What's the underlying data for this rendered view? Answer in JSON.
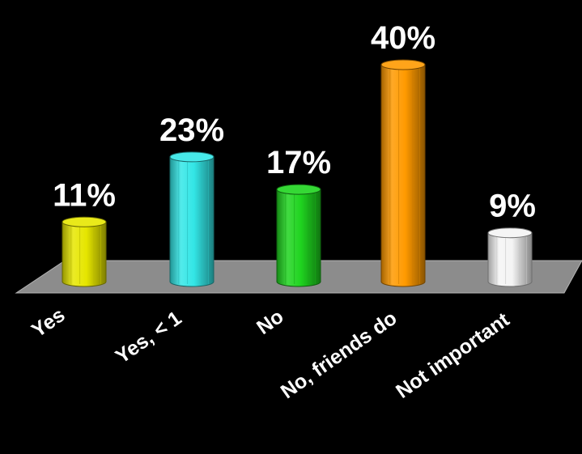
{
  "chart_data": {
    "type": "bar",
    "title": "",
    "xlabel": "",
    "ylabel": "",
    "categories": [
      "Yes",
      "Yes, < 1",
      "No",
      "No, friends do",
      "Not important"
    ],
    "values": [
      11,
      23,
      17,
      40,
      9
    ],
    "value_labels": [
      "11%",
      "23%",
      "17%",
      "40%",
      "9%"
    ],
    "unit": "%",
    "ylim": [
      0,
      40
    ],
    "grid": false,
    "legend": "none",
    "colors": [
      "#e6e600",
      "#33e6e6",
      "#1fd41f",
      "#ff9a00",
      "#f4f4f4"
    ],
    "floor_color": "#8c8c8c",
    "background": "#000000",
    "bar_style": "3d-cylinder"
  }
}
